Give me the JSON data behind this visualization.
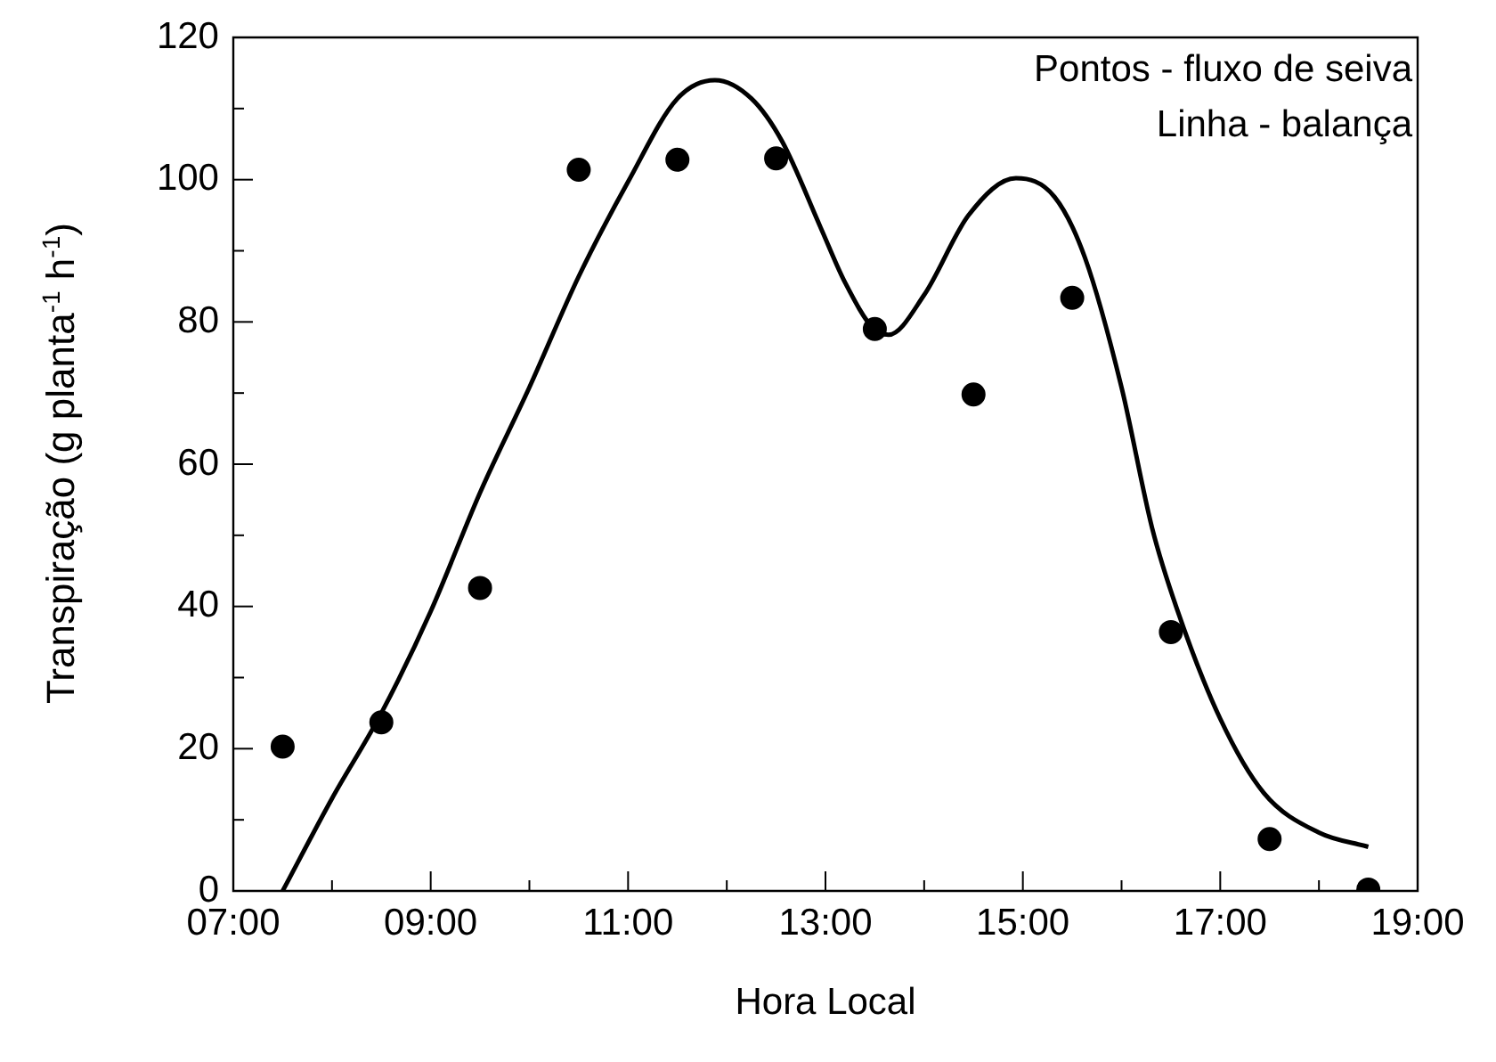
{
  "chart_data": {
    "type": "scatter",
    "xlabel": "Hora Local",
    "ylabel": "Transpiração (g planta$^{-1}$ h$^{-1}$)",
    "annotations": [
      "Pontos - fluxo de seiva",
      "Linha - balança"
    ],
    "xlim": [
      7,
      19
    ],
    "xticks": [
      {
        "value": 7,
        "label": "07:00"
      },
      {
        "value": 8,
        "label": null
      },
      {
        "value": 9,
        "label": "09:00"
      },
      {
        "value": 10,
        "label": null
      },
      {
        "value": 11,
        "label": "11:00"
      },
      {
        "value": 12,
        "label": null
      },
      {
        "value": 13,
        "label": "13:00"
      },
      {
        "value": 14,
        "label": null
      },
      {
        "value": 15,
        "label": "15:00"
      },
      {
        "value": 16,
        "label": null
      },
      {
        "value": 17,
        "label": "17:00"
      },
      {
        "value": 18,
        "label": null
      },
      {
        "value": 19,
        "label": "19:00"
      }
    ],
    "ylim": [
      0,
      120
    ],
    "yticks": [
      0,
      {
        "value": 10,
        "label": null
      },
      20,
      {
        "value": 30,
        "label": null
      },
      40,
      {
        "value": 50,
        "label": null
      },
      60,
      {
        "value": 70,
        "label": null
      },
      80,
      {
        "value": 90,
        "label": null
      },
      100,
      {
        "value": 110,
        "label": null
      },
      120
    ],
    "series": [
      {
        "color": "#000000",
        "marker": "circle",
        "x": [
          7.5,
          8.5,
          9.5,
          10.5,
          11.5,
          12.5,
          13.5,
          14.5,
          15.5,
          16.5,
          17.5,
          18.5
        ],
        "values": [
          20.3,
          23.7,
          42.6,
          101.4,
          102.8,
          103,
          79,
          69.8,
          83.4,
          36.4,
          7.3,
          0.2
        ]
      },
      {
        "type": "line",
        "color": "#000000",
        "marker": "none",
        "line_style": "solid",
        "x": [
          7.5,
          8,
          8.5,
          9,
          9.5,
          10,
          10.5,
          11,
          11.5,
          11.88,
          12.25,
          12.56,
          12.95,
          13.2,
          13.49,
          13.64,
          14,
          14.45,
          14.93,
          15.32,
          15.63,
          16,
          16.31,
          16.56,
          17,
          17.44,
          18,
          18.5
        ],
        "values": [
          0,
          13,
          25,
          39.3,
          56,
          70.8,
          86.4,
          99.7,
          111.4,
          114,
          111.4,
          105.4,
          93.3,
          85.5,
          79,
          78.2,
          83.8,
          95,
          100.2,
          97.6,
          89,
          70.8,
          51,
          39.7,
          24.2,
          13.8,
          8.2,
          6.2
        ]
      }
    ]
  }
}
